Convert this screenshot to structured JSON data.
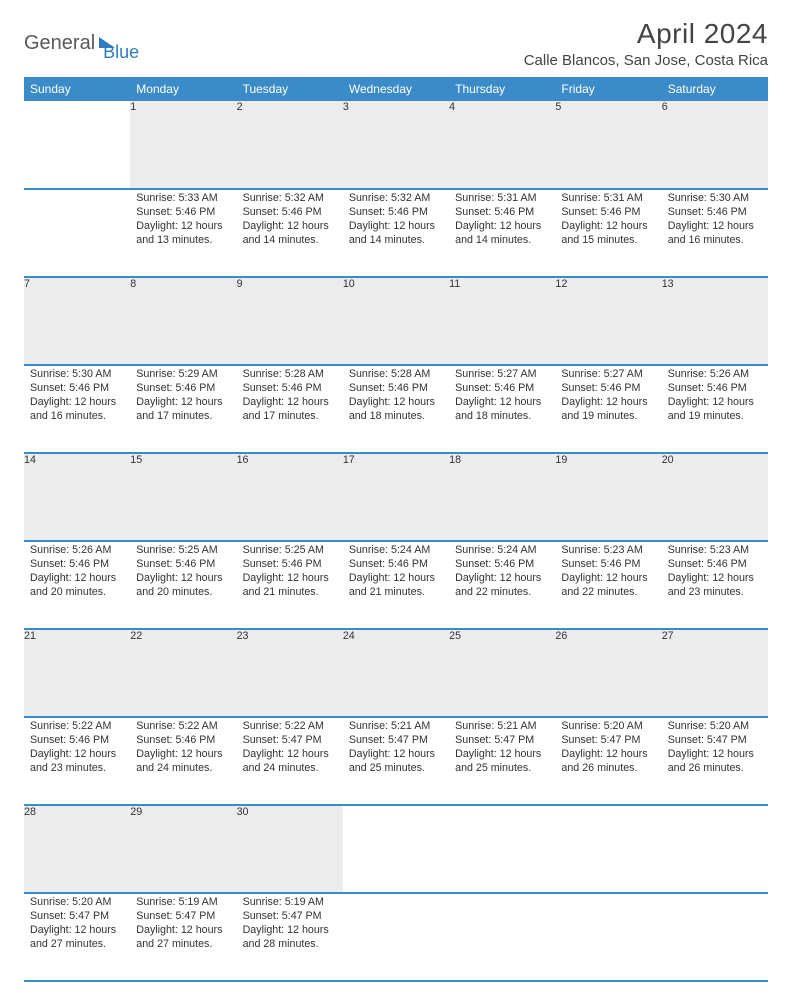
{
  "logo": {
    "part1": "General",
    "part2": "Blue"
  },
  "title": "April 2024",
  "location": "Calle Blancos, San Jose, Costa Rica",
  "colors": {
    "header_bg": "#3b8bc8",
    "header_fg": "#ffffff",
    "daynum_bg": "#ececec",
    "rule": "#3b8bc8",
    "logo_gray": "#5a5a5a",
    "logo_blue": "#2d7cc0"
  },
  "day_headers": [
    "Sunday",
    "Monday",
    "Tuesday",
    "Wednesday",
    "Thursday",
    "Friday",
    "Saturday"
  ],
  "weeks": [
    {
      "nums": [
        "",
        "1",
        "2",
        "3",
        "4",
        "5",
        "6"
      ],
      "cells": [
        null,
        {
          "sunrise": "5:33 AM",
          "sunset": "5:46 PM",
          "daylight": "12 hours and 13 minutes."
        },
        {
          "sunrise": "5:32 AM",
          "sunset": "5:46 PM",
          "daylight": "12 hours and 14 minutes."
        },
        {
          "sunrise": "5:32 AM",
          "sunset": "5:46 PM",
          "daylight": "12 hours and 14 minutes."
        },
        {
          "sunrise": "5:31 AM",
          "sunset": "5:46 PM",
          "daylight": "12 hours and 14 minutes."
        },
        {
          "sunrise": "5:31 AM",
          "sunset": "5:46 PM",
          "daylight": "12 hours and 15 minutes."
        },
        {
          "sunrise": "5:30 AM",
          "sunset": "5:46 PM",
          "daylight": "12 hours and 16 minutes."
        }
      ]
    },
    {
      "nums": [
        "7",
        "8",
        "9",
        "10",
        "11",
        "12",
        "13"
      ],
      "cells": [
        {
          "sunrise": "5:30 AM",
          "sunset": "5:46 PM",
          "daylight": "12 hours and 16 minutes."
        },
        {
          "sunrise": "5:29 AM",
          "sunset": "5:46 PM",
          "daylight": "12 hours and 17 minutes."
        },
        {
          "sunrise": "5:28 AM",
          "sunset": "5:46 PM",
          "daylight": "12 hours and 17 minutes."
        },
        {
          "sunrise": "5:28 AM",
          "sunset": "5:46 PM",
          "daylight": "12 hours and 18 minutes."
        },
        {
          "sunrise": "5:27 AM",
          "sunset": "5:46 PM",
          "daylight": "12 hours and 18 minutes."
        },
        {
          "sunrise": "5:27 AM",
          "sunset": "5:46 PM",
          "daylight": "12 hours and 19 minutes."
        },
        {
          "sunrise": "5:26 AM",
          "sunset": "5:46 PM",
          "daylight": "12 hours and 19 minutes."
        }
      ]
    },
    {
      "nums": [
        "14",
        "15",
        "16",
        "17",
        "18",
        "19",
        "20"
      ],
      "cells": [
        {
          "sunrise": "5:26 AM",
          "sunset": "5:46 PM",
          "daylight": "12 hours and 20 minutes."
        },
        {
          "sunrise": "5:25 AM",
          "sunset": "5:46 PM",
          "daylight": "12 hours and 20 minutes."
        },
        {
          "sunrise": "5:25 AM",
          "sunset": "5:46 PM",
          "daylight": "12 hours and 21 minutes."
        },
        {
          "sunrise": "5:24 AM",
          "sunset": "5:46 PM",
          "daylight": "12 hours and 21 minutes."
        },
        {
          "sunrise": "5:24 AM",
          "sunset": "5:46 PM",
          "daylight": "12 hours and 22 minutes."
        },
        {
          "sunrise": "5:23 AM",
          "sunset": "5:46 PM",
          "daylight": "12 hours and 22 minutes."
        },
        {
          "sunrise": "5:23 AM",
          "sunset": "5:46 PM",
          "daylight": "12 hours and 23 minutes."
        }
      ]
    },
    {
      "nums": [
        "21",
        "22",
        "23",
        "24",
        "25",
        "26",
        "27"
      ],
      "cells": [
        {
          "sunrise": "5:22 AM",
          "sunset": "5:46 PM",
          "daylight": "12 hours and 23 minutes."
        },
        {
          "sunrise": "5:22 AM",
          "sunset": "5:46 PM",
          "daylight": "12 hours and 24 minutes."
        },
        {
          "sunrise": "5:22 AM",
          "sunset": "5:47 PM",
          "daylight": "12 hours and 24 minutes."
        },
        {
          "sunrise": "5:21 AM",
          "sunset": "5:47 PM",
          "daylight": "12 hours and 25 minutes."
        },
        {
          "sunrise": "5:21 AM",
          "sunset": "5:47 PM",
          "daylight": "12 hours and 25 minutes."
        },
        {
          "sunrise": "5:20 AM",
          "sunset": "5:47 PM",
          "daylight": "12 hours and 26 minutes."
        },
        {
          "sunrise": "5:20 AM",
          "sunset": "5:47 PM",
          "daylight": "12 hours and 26 minutes."
        }
      ]
    },
    {
      "nums": [
        "28",
        "29",
        "30",
        "",
        "",
        "",
        ""
      ],
      "cells": [
        {
          "sunrise": "5:20 AM",
          "sunset": "5:47 PM",
          "daylight": "12 hours and 27 minutes."
        },
        {
          "sunrise": "5:19 AM",
          "sunset": "5:47 PM",
          "daylight": "12 hours and 27 minutes."
        },
        {
          "sunrise": "5:19 AM",
          "sunset": "5:47 PM",
          "daylight": "12 hours and 28 minutes."
        },
        null,
        null,
        null,
        null
      ]
    }
  ],
  "labels": {
    "sunrise": "Sunrise:",
    "sunset": "Sunset:",
    "daylight": "Daylight:"
  }
}
